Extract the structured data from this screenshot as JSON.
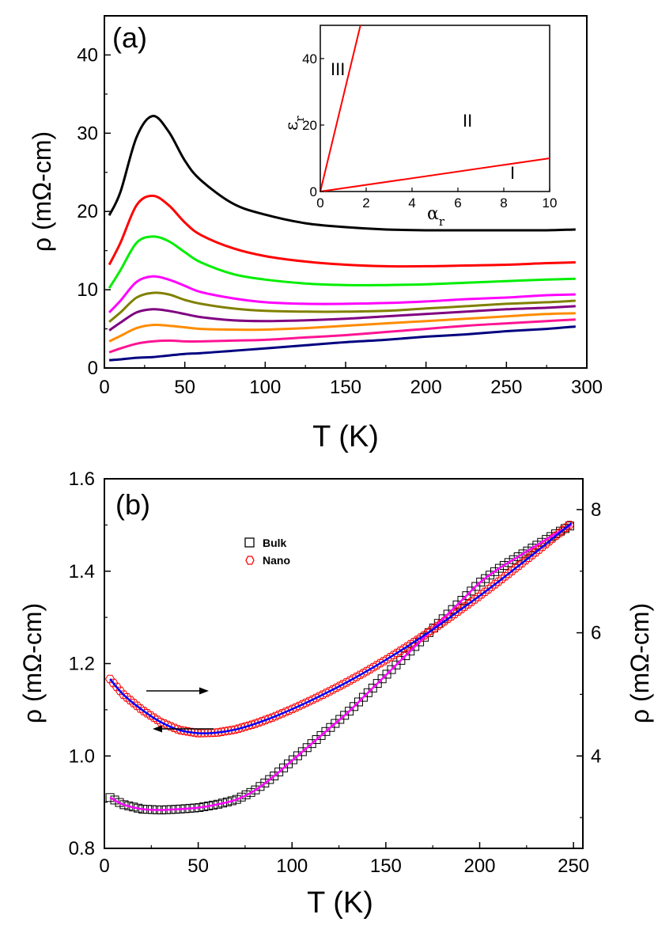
{
  "chart_data": [
    {
      "panel": "(a)",
      "type": "line",
      "xlabel": "T (K)",
      "ylabel": "ρ (mΩ-cm)",
      "xlim": [
        0,
        300
      ],
      "ylim": [
        0,
        45
      ],
      "xticks": [
        "0",
        "50",
        "100",
        "150",
        "200",
        "250",
        "300"
      ],
      "yticks": [
        "0",
        "10",
        "20",
        "30",
        "40"
      ],
      "x": [
        3,
        10,
        20,
        30,
        40,
        50,
        60,
        80,
        100,
        125,
        150,
        175,
        200,
        225,
        250,
        275,
        293
      ],
      "series": [
        {
          "name": "curve-1",
          "color": "#000000",
          "values": [
            19.5,
            22.5,
            29.5,
            32.2,
            30.2,
            26.5,
            24.0,
            21.0,
            19.6,
            18.5,
            18.0,
            17.7,
            17.6,
            17.6,
            17.6,
            17.6,
            17.7
          ]
        },
        {
          "name": "curve-2",
          "color": "#ff0000",
          "values": [
            13.2,
            16.0,
            20.8,
            22.0,
            20.8,
            18.6,
            17.0,
            15.3,
            14.3,
            13.6,
            13.2,
            13.0,
            13.0,
            13.1,
            13.2,
            13.4,
            13.5
          ]
        },
        {
          "name": "curve-3",
          "color": "#00ee00",
          "values": [
            10.2,
            12.5,
            16.0,
            16.8,
            16.2,
            14.8,
            13.5,
            12.0,
            11.3,
            10.8,
            10.6,
            10.6,
            10.7,
            10.9,
            11.1,
            11.3,
            11.4
          ]
        },
        {
          "name": "curve-4",
          "color": "#ff00ff",
          "values": [
            7.1,
            8.6,
            11.0,
            11.7,
            11.3,
            10.5,
            9.7,
            8.9,
            8.4,
            8.2,
            8.2,
            8.3,
            8.5,
            8.8,
            9.0,
            9.3,
            9.4
          ]
        },
        {
          "name": "curve-5",
          "color": "#808000",
          "values": [
            5.9,
            7.1,
            9.0,
            9.6,
            9.4,
            8.7,
            8.2,
            7.6,
            7.3,
            7.2,
            7.2,
            7.3,
            7.6,
            7.9,
            8.2,
            8.4,
            8.6
          ]
        },
        {
          "name": "curve-6",
          "color": "#800080",
          "values": [
            4.8,
            5.8,
            7.1,
            7.5,
            7.3,
            6.9,
            6.5,
            6.1,
            6.0,
            6.1,
            6.3,
            6.6,
            6.9,
            7.2,
            7.5,
            7.7,
            7.9
          ]
        },
        {
          "name": "curve-7",
          "color": "#ff8c00",
          "values": [
            3.4,
            4.1,
            5.1,
            5.5,
            5.4,
            5.2,
            5.0,
            4.9,
            4.9,
            5.1,
            5.4,
            5.7,
            6.0,
            6.3,
            6.6,
            6.9,
            7.0
          ]
        },
        {
          "name": "curve-8",
          "color": "#ff1493",
          "values": [
            2.0,
            2.5,
            3.1,
            3.4,
            3.5,
            3.4,
            3.4,
            3.5,
            3.6,
            3.9,
            4.2,
            4.6,
            5.0,
            5.4,
            5.7,
            6.0,
            6.2
          ]
        },
        {
          "name": "curve-9",
          "color": "#000080",
          "values": [
            1.0,
            1.1,
            1.3,
            1.4,
            1.6,
            1.8,
            1.9,
            2.2,
            2.5,
            2.9,
            3.3,
            3.6,
            4.0,
            4.3,
            4.7,
            5.0,
            5.3
          ]
        }
      ],
      "inset": {
        "xlabel": "α",
        "xlabel_sub": "r",
        "ylabel": "ε",
        "ylabel_sub": "r",
        "xlim": [
          0,
          10
        ],
        "ylim": [
          0,
          50
        ],
        "xticks": [
          "0",
          "2",
          "4",
          "6",
          "8",
          "10"
        ],
        "yticks": [
          "0",
          "20",
          "40"
        ],
        "lines": [
          {
            "name": "boundary-steep",
            "color": "#ff0000",
            "x": [
              0,
              1.75
            ],
            "y": [
              0,
              50
            ]
          },
          {
            "name": "boundary-shallow",
            "color": "#ff0000",
            "x": [
              0,
              10
            ],
            "y": [
              0,
              10
            ]
          }
        ],
        "region_labels": [
          "III",
          "II",
          "I"
        ]
      }
    },
    {
      "panel": "(b)",
      "type": "scatter",
      "xlabel": "T (K)",
      "ylabel_left": "ρ (mΩ-cm)",
      "ylabel_right": "ρ (mΩ-cm)",
      "xlim": [
        0,
        255
      ],
      "ylim_left": [
        0.8,
        1.6
      ],
      "ylim_right": [
        2.5,
        8.5
      ],
      "xticks": [
        "0",
        "50",
        "100",
        "150",
        "200",
        "250"
      ],
      "yticks_left": [
        "0.8",
        "1.0",
        "1.2",
        "1.4",
        "1.6"
      ],
      "yticks_right": [
        "4",
        "6",
        "8"
      ],
      "legend": [
        {
          "label": "Bulk",
          "marker": "square",
          "color": "#000000"
        },
        {
          "label": "Nano",
          "marker": "hexagon",
          "color": "#ff0000"
        }
      ],
      "bulk": {
        "axis": "left",
        "x": [
          3,
          10,
          20,
          30,
          40,
          50,
          60,
          70,
          80,
          90,
          100,
          110,
          120,
          130,
          140,
          150,
          160,
          170,
          180,
          190,
          200,
          210,
          220,
          230,
          240,
          249
        ],
        "values": [
          0.91,
          0.895,
          0.885,
          0.883,
          0.885,
          0.888,
          0.895,
          0.905,
          0.925,
          0.955,
          0.99,
          1.025,
          1.06,
          1.095,
          1.135,
          1.175,
          1.215,
          1.255,
          1.295,
          1.335,
          1.375,
          1.405,
          1.43,
          1.455,
          1.48,
          1.5
        ],
        "fit_color": "#ff00ff"
      },
      "nano": {
        "axis": "right",
        "x": [
          3,
          10,
          20,
          30,
          40,
          50,
          60,
          70,
          80,
          90,
          100,
          110,
          120,
          130,
          140,
          150,
          160,
          170,
          180,
          190,
          200,
          210,
          220,
          230,
          240,
          249
        ],
        "values": [
          5.25,
          5.0,
          4.75,
          4.55,
          4.42,
          4.37,
          4.38,
          4.43,
          4.52,
          4.63,
          4.76,
          4.9,
          5.05,
          5.21,
          5.38,
          5.56,
          5.75,
          5.95,
          6.16,
          6.38,
          6.6,
          6.83,
          7.07,
          7.31,
          7.56,
          7.78
        ],
        "fit_color": "#0000ff"
      },
      "arrows": [
        {
          "name": "arrow-right",
          "points_to": "right axis"
        },
        {
          "name": "arrow-left",
          "points_to": "left axis"
        }
      ]
    }
  ]
}
